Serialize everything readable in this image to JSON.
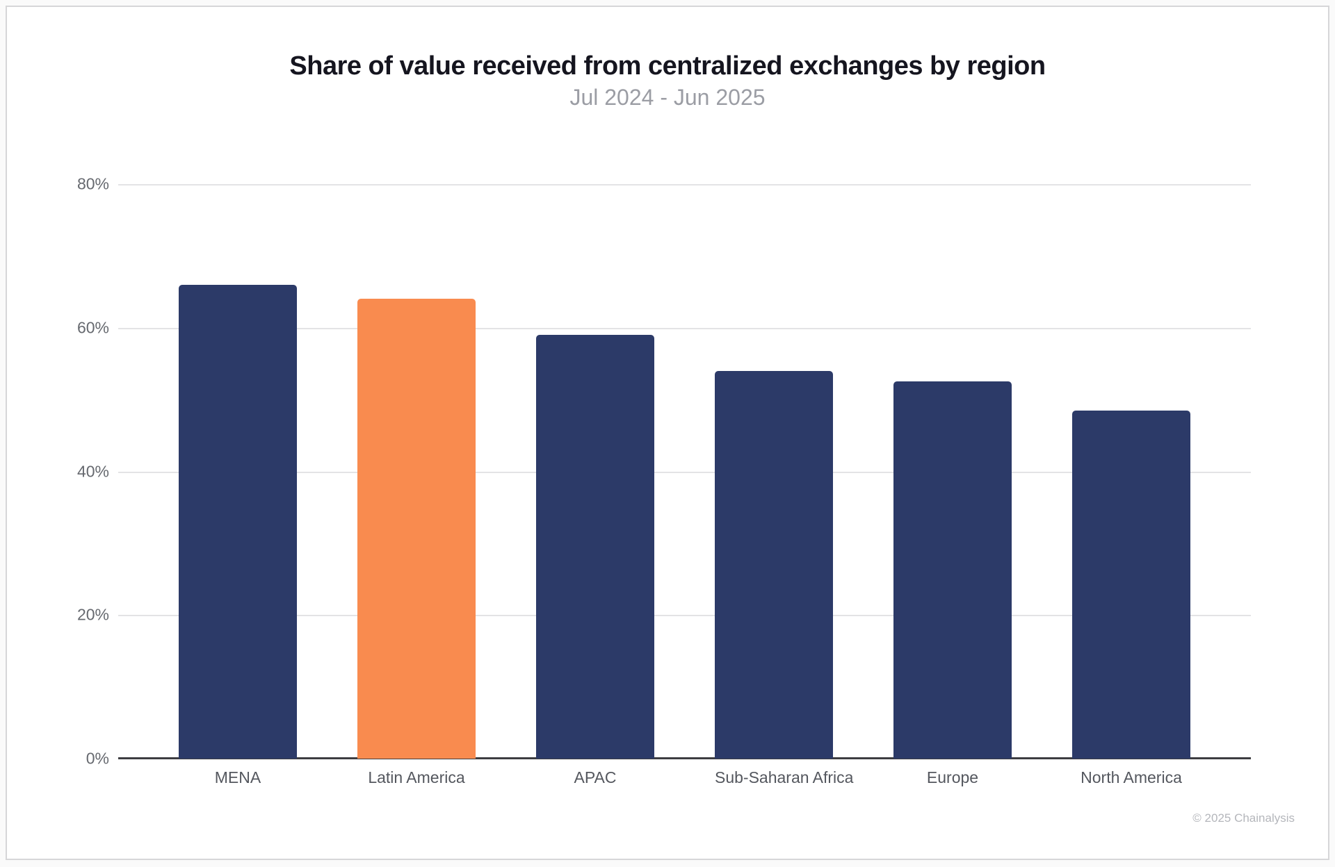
{
  "header": {
    "title": "Share of value received from centralized exchanges by region",
    "subtitle": "Jul 2024 - Jun 2025"
  },
  "footer": {
    "copyright": "© 2025 Chainalysis"
  },
  "colors": {
    "bar_default": "#2c3a68",
    "bar_highlight": "#f98b4f",
    "gridline": "#e3e3e5",
    "baseline": "#3d3d41"
  },
  "chart_data": {
    "type": "bar",
    "title": "Share of value received from centralized exchanges by region",
    "subtitle": "Jul 2024 - Jun 2025",
    "categories": [
      "MENA",
      "Latin America",
      "APAC",
      "Sub-Saharan Africa",
      "Europe",
      "North America"
    ],
    "values": [
      66,
      64,
      59,
      54,
      52.5,
      48.5
    ],
    "unit": "%",
    "highlight_index": 1,
    "xlabel": "",
    "ylabel": "",
    "ylim": [
      0,
      80
    ],
    "yticks": [
      "80%",
      "60%",
      "40%",
      "20%",
      "0%"
    ],
    "grid": true,
    "legend": false
  }
}
